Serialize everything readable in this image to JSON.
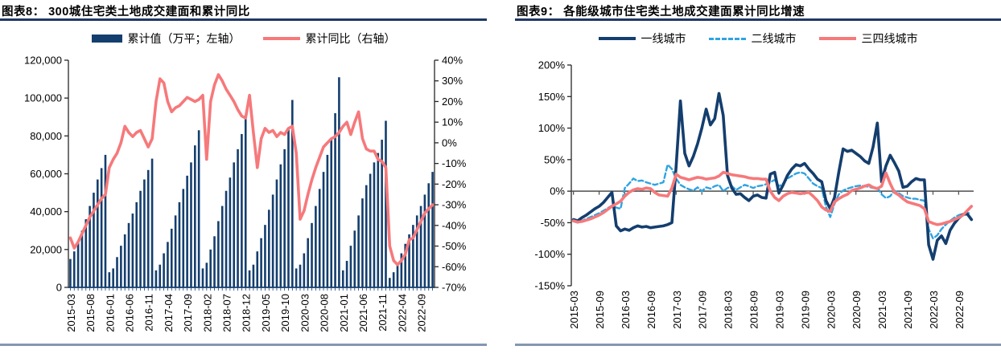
{
  "figure8": {
    "caption": "图表8： 300城住宅类土地成交建面和累计同比",
    "legend": [
      "累计值（万平；左轴）",
      "累计同比（右轴）"
    ]
  },
  "figure9": {
    "caption": "图表9： 各能级城市住宅类土地成交建面累计同比增速",
    "legend": [
      "一线城市",
      "二线城市",
      "三四线城市"
    ]
  },
  "colors": {
    "navy": "#143E6E",
    "salmon": "#F6797B",
    "light_blue": "#2FA3E0",
    "caption_rule": "#1F3864",
    "bottom_rule": "#8496B0",
    "axis": "#262626",
    "zero_line": "#4D4D4D"
  },
  "chart_data": [
    {
      "id": "chart8",
      "type": "bar+line",
      "title": "300城住宅类土地成交建面和累计同比",
      "x_start": "2015-03",
      "x_frequency": "monthly",
      "x_tick_every": 5,
      "x_tick_labels": [
        "2015-03",
        "2015-08",
        "2016-01",
        "2016-06",
        "2016-11",
        "2017-04",
        "2017-09",
        "2018-02",
        "2018-07",
        "2018-12",
        "2019-05",
        "2019-10",
        "2020-03",
        "2020-08",
        "2021-01",
        "2021-06",
        "2021-11",
        "2022-04",
        "2022-09"
      ],
      "left_axis": {
        "range": [
          0,
          120000
        ],
        "tick_values": [
          0,
          20000,
          40000,
          60000,
          80000,
          100000,
          120000
        ],
        "tick_labels": [
          "0",
          "20,000",
          "40,000",
          "60,000",
          "80,000",
          "100,000",
          "120,000"
        ]
      },
      "right_axis": {
        "range": [
          -70,
          40
        ],
        "tick_step": 10,
        "tick_labels": [
          "40%",
          "30%",
          "20%",
          "10%",
          "0%",
          "-10%",
          "-20%",
          "-30%",
          "-40%",
          "-50%",
          "-60%",
          "-70%"
        ]
      },
      "series": [
        {
          "name": "累计值（万平；左轴）",
          "type": "bar",
          "axis": "left",
          "color_key": "navy",
          "values": [
            15000,
            19000,
            24000,
            30000,
            36000,
            43000,
            50000,
            57000,
            63000,
            70000,
            8000,
            10000,
            16000,
            22000,
            28000,
            34000,
            39000,
            45000,
            51000,
            57000,
            62000,
            68000,
            9000,
            12000,
            18000,
            24000,
            31000,
            38000,
            45000,
            52000,
            59000,
            66000,
            75000,
            83000,
            10000,
            13000,
            20000,
            27000,
            35000,
            43000,
            51000,
            58000,
            66000,
            73000,
            81000,
            89000,
            9000,
            12000,
            19000,
            26000,
            33000,
            41000,
            49000,
            57000,
            65000,
            73000,
            84000,
            99000,
            10000,
            12000,
            18000,
            26000,
            34000,
            43000,
            52000,
            61000,
            70000,
            79000,
            92000,
            111000,
            9000,
            14000,
            22000,
            30000,
            38000,
            47000,
            54000,
            60000,
            66000,
            71000,
            78000,
            88000,
            5000,
            8000,
            13000,
            18000,
            23000,
            28000,
            33000,
            38000,
            43000,
            49000,
            55000,
            61000
          ]
        },
        {
          "name": "累计同比（右轴）",
          "type": "line",
          "axis": "right",
          "color_key": "salmon",
          "values": [
            -46,
            -51,
            -48,
            -44,
            -40,
            -36,
            -33,
            -30,
            -27,
            -25,
            -12,
            -8,
            -5,
            0,
            8,
            5,
            3,
            5,
            6,
            2,
            -2,
            2,
            20,
            31,
            29,
            20,
            15,
            17,
            18,
            20,
            22,
            21,
            20,
            21,
            23,
            -8,
            20,
            28,
            33,
            30,
            26,
            23,
            20,
            16,
            13,
            12,
            23,
            5,
            -12,
            2,
            7,
            5,
            6,
            3,
            5,
            4,
            7,
            8,
            -5,
            -37,
            -33,
            -25,
            -18,
            -12,
            -7,
            -2,
            0,
            2,
            3,
            5,
            8,
            10,
            4,
            10,
            15,
            2,
            -3,
            -4,
            -4,
            -8,
            -9,
            -12,
            -50,
            -57,
            -59,
            -57,
            -54,
            -47,
            -46,
            -42,
            -38,
            -34,
            -32,
            -30
          ]
        }
      ]
    },
    {
      "id": "chart9",
      "type": "line",
      "title": "各能级城市住宅类土地成交建面累计同比增速",
      "x_start": "2015-03",
      "x_frequency": "monthly",
      "x_tick_every": 6,
      "x_tick_labels": [
        "2015-03",
        "2015-09",
        "2016-03",
        "2016-09",
        "2017-03",
        "2017-09",
        "2018-03",
        "2018-09",
        "2019-03",
        "2019-09",
        "2020-03",
        "2020-09",
        "2021-03",
        "2021-09",
        "2022-03",
        "2022-09"
      ],
      "y_axis": {
        "range": [
          -150,
          200
        ],
        "tick_step": 50,
        "tick_labels": [
          "200%",
          "150%",
          "100%",
          "50%",
          "0%",
          "-50%",
          "-100%",
          "-150%"
        ]
      },
      "series": [
        {
          "name": "一线城市",
          "type": "line",
          "style": "solid",
          "color_key": "navy",
          "values": [
            -45,
            -47,
            -42,
            -38,
            -33,
            -28,
            -24,
            -18,
            -10,
            -2,
            -55,
            -63,
            -60,
            -62,
            -58,
            -55,
            -57,
            -56,
            -58,
            -57,
            -56,
            -55,
            -53,
            -50,
            40,
            143,
            60,
            40,
            55,
            75,
            100,
            130,
            105,
            115,
            155,
            120,
            25,
            5,
            -5,
            -4,
            -10,
            -15,
            -8,
            -6,
            -10,
            -11,
            27,
            30,
            -3,
            10,
            25,
            35,
            42,
            40,
            44,
            35,
            28,
            19,
            15,
            -15,
            -28,
            -10,
            30,
            67,
            63,
            65,
            60,
            55,
            48,
            44,
            70,
            108,
            15,
            40,
            57,
            45,
            32,
            6,
            8,
            15,
            20,
            18,
            18,
            -85,
            -108,
            -78,
            -71,
            -83,
            -62,
            -51,
            -43,
            -37,
            -36,
            -45
          ]
        },
        {
          "name": "二线城市",
          "type": "line",
          "style": "dashed",
          "color_key": "light_blue",
          "values": [
            -48,
            -50,
            -47,
            -44,
            -41,
            -38,
            -35,
            -31,
            -27,
            -23,
            -26,
            -28,
            5,
            12,
            20,
            16,
            17,
            14,
            12,
            10,
            12,
            14,
            42,
            35,
            20,
            10,
            6,
            3,
            1,
            6,
            0,
            6,
            4,
            8,
            10,
            0,
            5,
            8,
            2,
            6,
            10,
            8,
            5,
            8,
            9,
            11,
            14,
            18,
            8,
            12,
            20,
            24,
            28,
            30,
            28,
            20,
            12,
            8,
            5,
            -25,
            -41,
            -20,
            -5,
            1,
            4,
            6,
            8,
            9,
            8,
            7,
            5,
            6,
            -5,
            -11,
            -8,
            1,
            -3,
            -8,
            -10,
            -12,
            -12,
            -14,
            -15,
            -60,
            -75,
            -70,
            -60,
            -53,
            -47,
            -42,
            -38,
            -36,
            -34,
            -36
          ]
        },
        {
          "name": "三四线城市",
          "type": "line",
          "style": "solid",
          "color_key": "salmon",
          "values": [
            -47,
            -49,
            -48,
            -46,
            -44,
            -41,
            -38,
            -34,
            -29,
            -24,
            -20,
            -16,
            -8,
            -2,
            2,
            4,
            3,
            5,
            4,
            -2,
            -6,
            -7,
            -8,
            5,
            27,
            22,
            20,
            18,
            20,
            22,
            21,
            19,
            20,
            21,
            24,
            30,
            28,
            26,
            25,
            24,
            23,
            21,
            20,
            20,
            19,
            19,
            0,
            -10,
            -15,
            -8,
            -4,
            -2,
            -3,
            -4,
            -3,
            -2,
            -8,
            -15,
            -25,
            -30,
            -32,
            -17,
            -12,
            -8,
            -5,
            1,
            3,
            5,
            8,
            10,
            6,
            4,
            8,
            29,
            12,
            -2,
            -6,
            -12,
            -17,
            -19,
            -21,
            -23,
            -28,
            -48,
            -51,
            -53,
            -52,
            -50,
            -48,
            -45,
            -42,
            -38,
            -31,
            -24
          ]
        }
      ]
    }
  ]
}
